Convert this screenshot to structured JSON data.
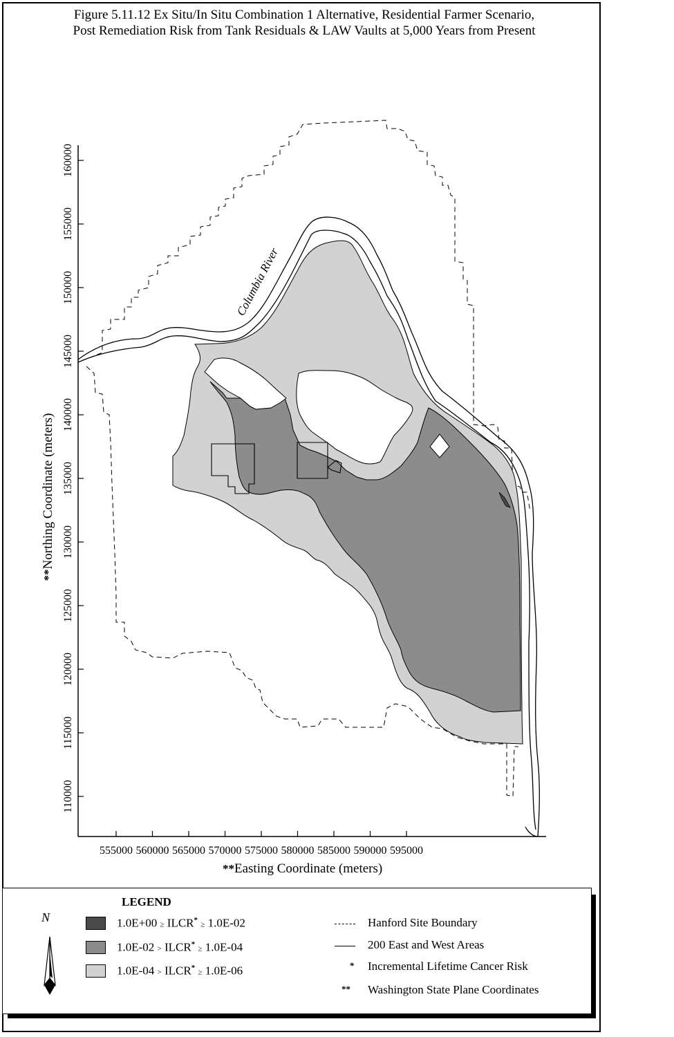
{
  "title": {
    "line1": "Figure 5.11.12  Ex Situ/In Situ Combination 1 Alternative, Residential Farmer Scenario,",
    "line2": "Post Remediation Risk from Tank Residuals & LAW Vaults at 5,000 Years from Present"
  },
  "axes": {
    "x_prefix": "**",
    "x_label": "Easting Coordinate (meters)",
    "y_prefix": "**",
    "y_label": "Northing Coordinate (meters)",
    "x_ticks": [
      "555000",
      "560000",
      "565000",
      "570000",
      "575000",
      "580000",
      "585000",
      "590000",
      "595000"
    ],
    "y_ticks": [
      "160000",
      "155000",
      "150000",
      "145000",
      "140000",
      "135000",
      "130000",
      "125000",
      "120000",
      "115000",
      "110000"
    ]
  },
  "map_labels": {
    "river": "Columbia River"
  },
  "colors": {
    "high_risk": "#4a4a4a",
    "medium_risk": "#8c8c8c",
    "low_risk": "#d2d2d2"
  },
  "legend": {
    "title": "LEGEND",
    "north_symbol": "N",
    "entries": [
      {
        "left": "1.0E+00",
        "op1": "≥",
        "mid": "ILCR",
        "star": "*",
        "op2": "≥",
        "right": "1.0E-02"
      },
      {
        "left": "1.0E-02",
        "op1": ">",
        "mid": "ILCR",
        "star": "*",
        "op2": "≥",
        "right": "1.0E-04"
      },
      {
        "left": "1.0E-04",
        "op1": ">",
        "mid": "ILCR",
        "star": "*",
        "op2": "≥",
        "right": "1.0E-06"
      }
    ],
    "keys": [
      {
        "label": "Hanford Site Boundary"
      },
      {
        "label": "200 East and West Areas"
      },
      {
        "mark": "*",
        "label": "Incremental Lifetime Cancer Risk"
      },
      {
        "mark": "**",
        "label": "Washington State Plane Coordinates"
      }
    ]
  }
}
